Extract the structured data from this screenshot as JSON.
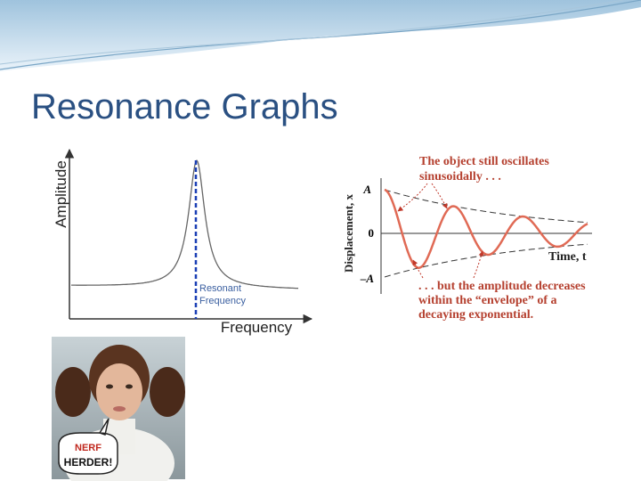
{
  "header": {
    "title": "Resonance Graphs"
  },
  "resonance_graph": {
    "y_label": "Amplitude",
    "x_label": "Frequency",
    "marker_label": [
      "Resonant",
      "Frequency"
    ]
  },
  "damped_graph": {
    "top_note": [
      "The object still oscillates",
      "sinusoidally . . ."
    ],
    "y_label": "Displacement, x",
    "y_marks": [
      "A",
      "0",
      "–A"
    ],
    "x_label": "Time, t",
    "bottom_note": [
      ". . . but the amplitude decreases",
      "within the “envelope” of a",
      "decaying exponential."
    ]
  },
  "photo": {
    "caption": [
      "NERF",
      "HERDER!"
    ]
  }
}
